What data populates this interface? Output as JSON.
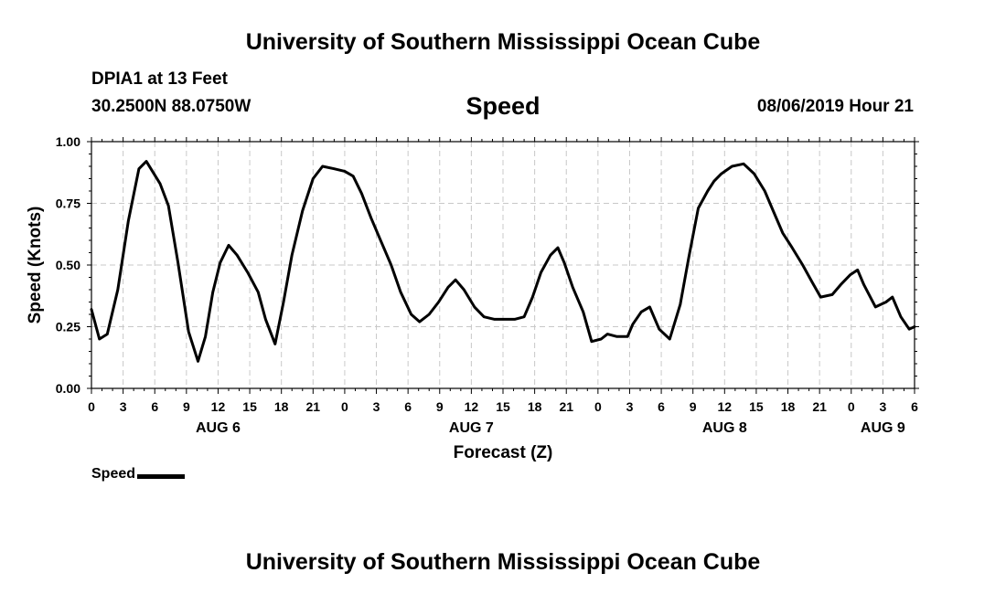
{
  "header": {
    "title": "University of Southern Mississippi Ocean Cube",
    "station": "DPIA1 at 13 Feet",
    "coords": "30.2500N 88.0750W",
    "timestamp": "08/06/2019 Hour 21"
  },
  "footer": {
    "title": "University of Southern Mississippi Ocean Cube"
  },
  "legend": {
    "label": "Speed"
  },
  "chart_data": {
    "type": "line",
    "title": "Speed",
    "xlabel": "Forecast (Z)",
    "ylabel": "Speed (Knots)",
    "ylim": [
      0,
      1
    ],
    "xlim_hours": [
      0,
      78
    ],
    "y_ticks": [
      "0.00",
      "0.25",
      "0.50",
      "0.75",
      "1.00"
    ],
    "x_ticks": [
      "0",
      "3",
      "6",
      "9",
      "12",
      "15",
      "18",
      "21",
      "0",
      "3",
      "6",
      "9",
      "12",
      "15",
      "18",
      "21",
      "0",
      "3",
      "6",
      "9",
      "12",
      "15",
      "18",
      "21",
      "0",
      "3",
      "6"
    ],
    "day_labels": [
      {
        "label": "AUG 6",
        "hour": 12
      },
      {
        "label": "AUG 7",
        "hour": 36
      },
      {
        "label": "AUG 8",
        "hour": 60
      },
      {
        "label": "AUG 9",
        "hour": 75
      }
    ],
    "grid": true,
    "line_color": "#000000",
    "series": [
      {
        "name": "Speed",
        "x": [
          0,
          0.75,
          1.5,
          2.5,
          3.5,
          4.5,
          5.2,
          6.5,
          7.3,
          8.2,
          9.2,
          10.1,
          10.8,
          11.5,
          12.2,
          13.0,
          13.8,
          14.8,
          15.8,
          16.5,
          17.4,
          18.2,
          19.0,
          20.0,
          21.0,
          21.9,
          23.0,
          24.0,
          24.8,
          25.6,
          26.5,
          27.3,
          28.4,
          29.3,
          30.3,
          31.1,
          32.0,
          32.9,
          33.8,
          34.5,
          35.3,
          36.3,
          37.2,
          38.2,
          39.2,
          40.1,
          41.0,
          41.8,
          42.6,
          43.5,
          44.2,
          44.8,
          45.6,
          46.6,
          47.4,
          48.3,
          48.9,
          49.8,
          50.8,
          51.3,
          52.1,
          52.9,
          53.8,
          54.8,
          55.8,
          56.6,
          57.5,
          58.4,
          59.0,
          59.7,
          60.7,
          61.8,
          62.8,
          63.8,
          64.6,
          65.5,
          66.4,
          67.4,
          68.3,
          69.1,
          70.2,
          71.0,
          71.9,
          72.6,
          73.2,
          74.3,
          75.3,
          75.9,
          76.7,
          77.5,
          78.0
        ],
        "y": [
          0.32,
          0.2,
          0.22,
          0.4,
          0.68,
          0.89,
          0.92,
          0.83,
          0.74,
          0.51,
          0.23,
          0.11,
          0.21,
          0.39,
          0.51,
          0.58,
          0.54,
          0.47,
          0.39,
          0.28,
          0.18,
          0.35,
          0.54,
          0.72,
          0.85,
          0.9,
          0.89,
          0.88,
          0.86,
          0.79,
          0.69,
          0.61,
          0.5,
          0.39,
          0.3,
          0.27,
          0.3,
          0.35,
          0.41,
          0.44,
          0.4,
          0.33,
          0.29,
          0.28,
          0.28,
          0.28,
          0.29,
          0.37,
          0.47,
          0.54,
          0.57,
          0.51,
          0.41,
          0.31,
          0.19,
          0.2,
          0.22,
          0.21,
          0.21,
          0.26,
          0.31,
          0.33,
          0.24,
          0.2,
          0.34,
          0.53,
          0.73,
          0.8,
          0.84,
          0.87,
          0.9,
          0.91,
          0.87,
          0.8,
          0.72,
          0.63,
          0.57,
          0.5,
          0.43,
          0.37,
          0.38,
          0.42,
          0.46,
          0.48,
          0.42,
          0.33,
          0.35,
          0.37,
          0.29,
          0.24,
          0.25
        ]
      }
    ]
  }
}
